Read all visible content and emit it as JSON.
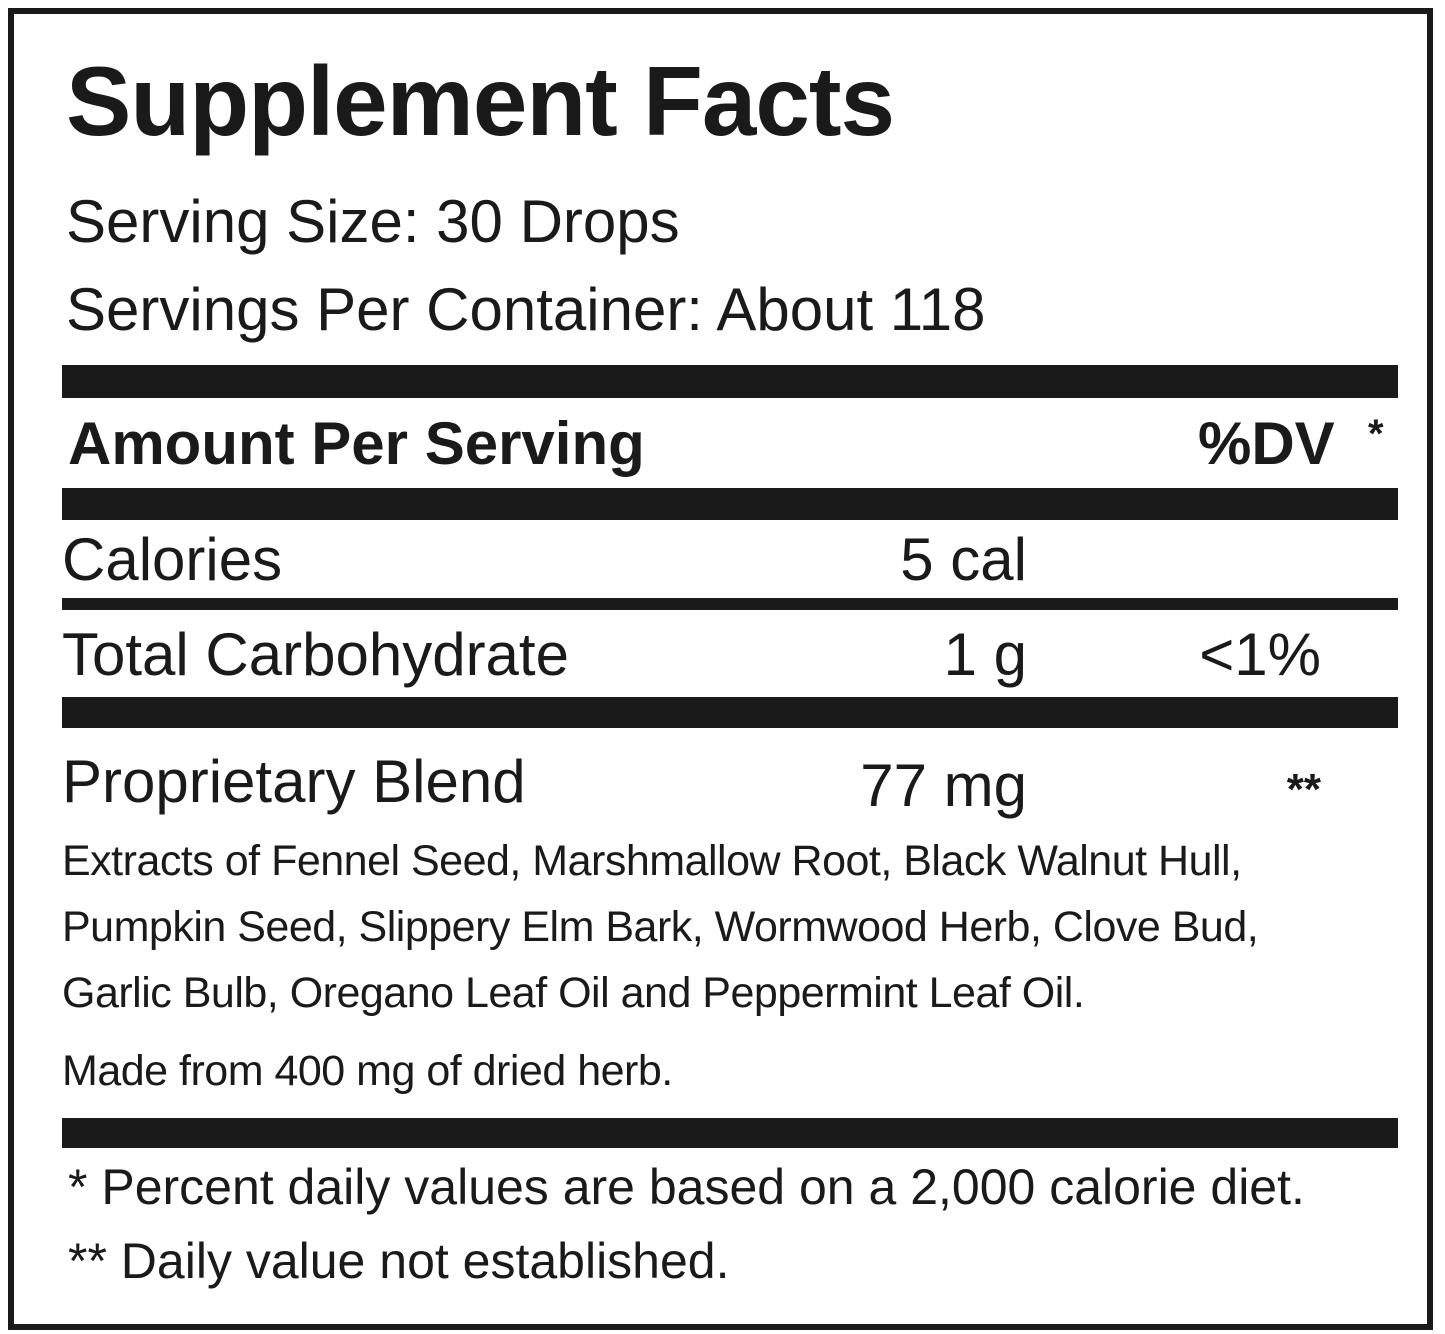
{
  "title": "Supplement Facts",
  "serving_size": "Serving Size: 30 Drops",
  "servings_per_container": "Servings Per Container: About 118",
  "header": {
    "amount_per_serving": "Amount Per Serving",
    "dv": "%DV",
    "dv_mark": "*"
  },
  "rows": [
    {
      "name": "Calories",
      "amount": "5 cal",
      "dv": ""
    },
    {
      "name": "Total Carbohydrate",
      "amount": "1 g",
      "dv": "<1%"
    },
    {
      "name": "Proprietary Blend",
      "amount": "77 mg",
      "dv": "**"
    }
  ],
  "blend_lines": [
    "Extracts of Fennel Seed, Marshmallow Root, Black Walnut Hull,",
    "Pumpkin Seed, Slippery Elm Bark, Wormwood Herb, Clove Bud,",
    "Garlic Bulb, Oregano Leaf Oil and Peppermint Leaf Oil."
  ],
  "made_from": "Made from 400 mg of dried herb.",
  "footnotes": [
    "* Percent daily values are based on a 2,000 calorie diet.",
    "** Daily value not established."
  ]
}
